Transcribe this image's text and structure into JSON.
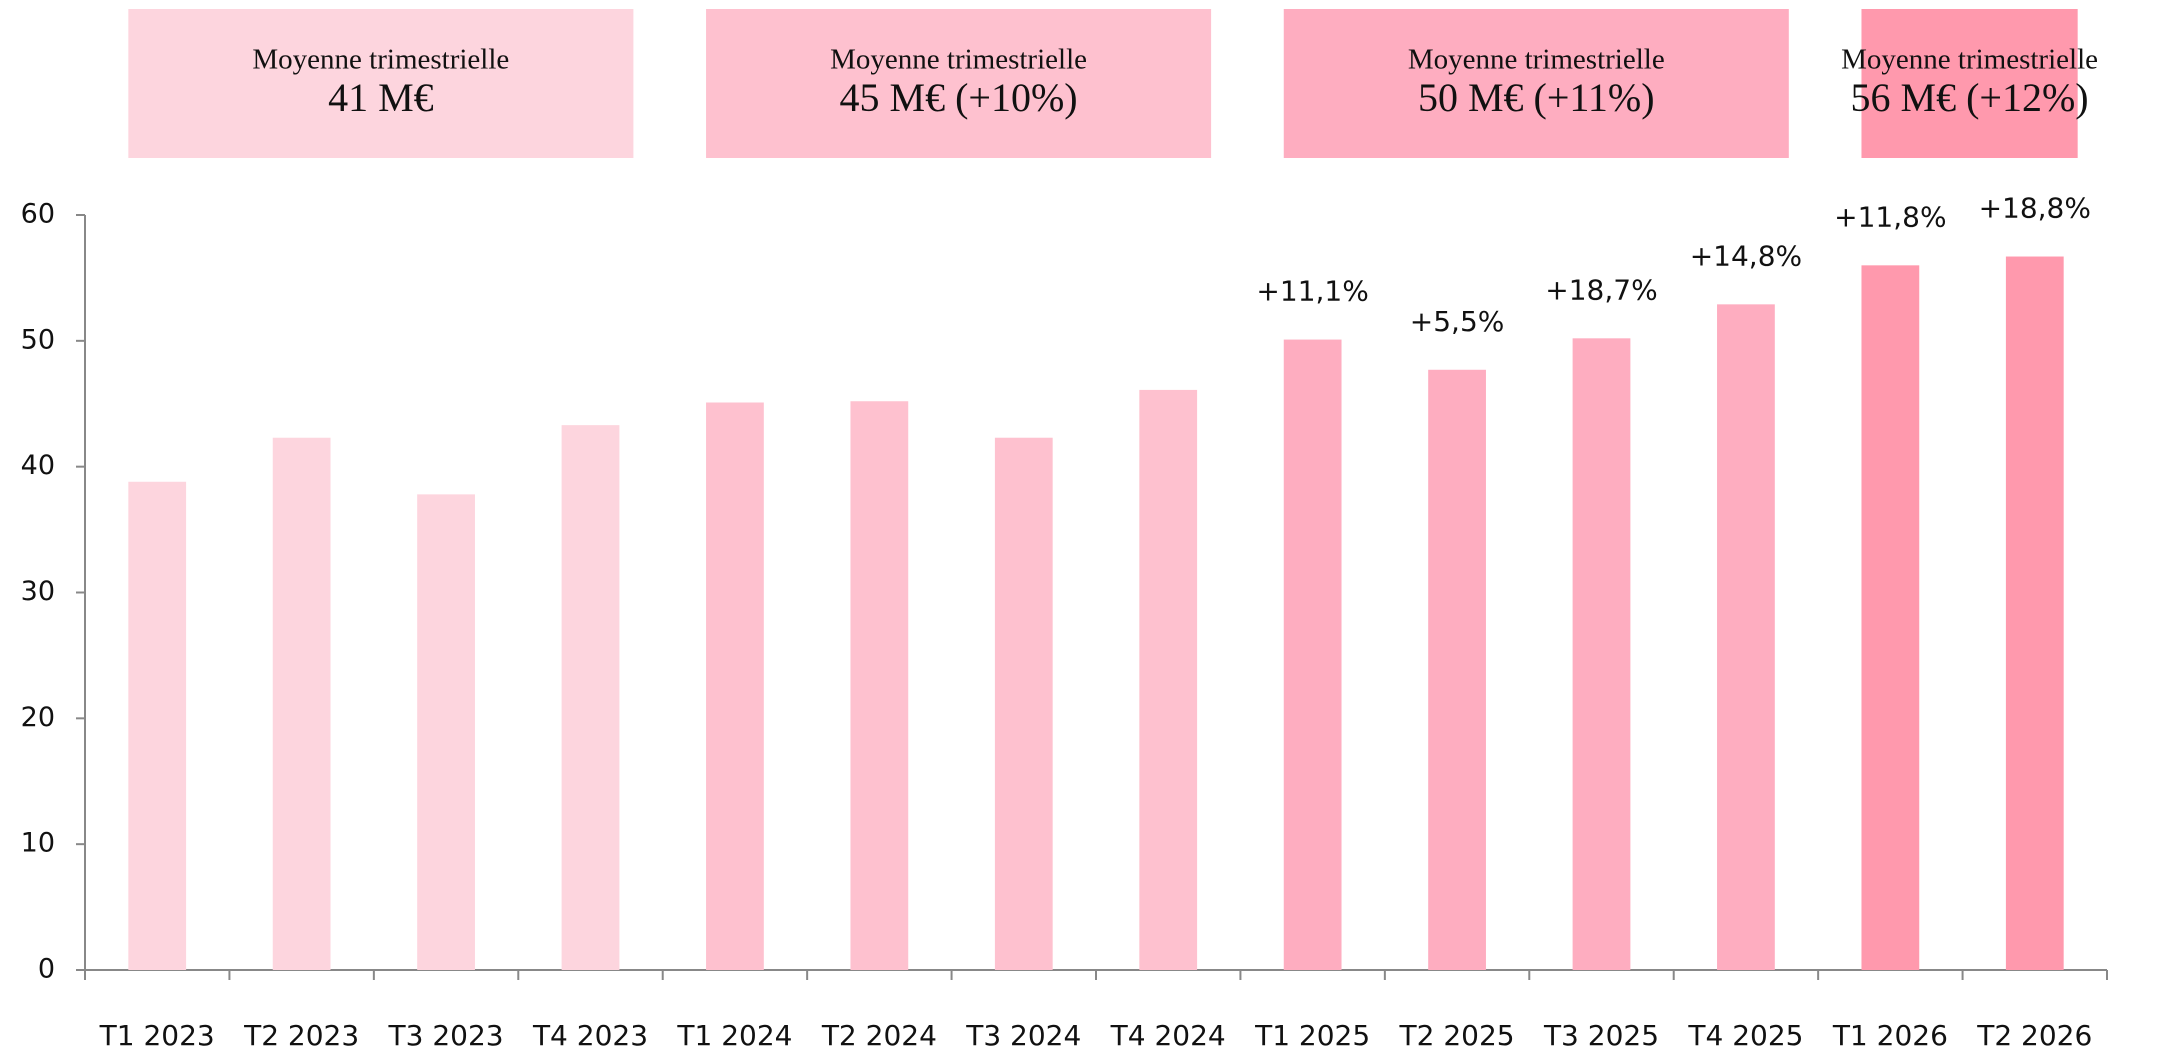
{
  "chart_data": {
    "type": "bar",
    "categories": [
      "T1 2023",
      "T2 2023",
      "T3 2023",
      "T4 2023",
      "T1 2024",
      "T2 2024",
      "T3 2024",
      "T4 2024",
      "T1 2025",
      "T2 2025",
      "T3 2025",
      "T4 2025",
      "T1 2026",
      "T2 2026"
    ],
    "values": [
      38.8,
      42.3,
      37.8,
      43.3,
      45.1,
      45.2,
      42.3,
      46.1,
      50.1,
      47.7,
      50.2,
      52.9,
      56.0,
      56.7
    ],
    "colors": [
      "#fdd5de",
      "#fdd5de",
      "#fdd5de",
      "#fdd5de",
      "#fec1cf",
      "#fec1cf",
      "#fec1cf",
      "#fec1cf",
      "#feadc0",
      "#feadc0",
      "#feadc0",
      "#feadc0",
      "#ff99ad",
      "#ff99ad"
    ],
    "growth_labels": [
      null,
      null,
      null,
      null,
      null,
      null,
      null,
      null,
      "+11,1%",
      "+5,5%",
      "+18,7%",
      "+14,8%",
      "+11,8%",
      "+18,8%"
    ],
    "ylim": [
      0,
      60
    ],
    "yticks": [
      0,
      10,
      20,
      30,
      40,
      50,
      60
    ],
    "periods": [
      {
        "title": "Moyenne trimestrielle",
        "value": "41 M€",
        "color": "#fdd5de"
      },
      {
        "title": "Moyenne trimestrielle",
        "value": "45 M€ (+10%)",
        "color": "#fec1cf"
      },
      {
        "title": "Moyenne trimestrielle",
        "value": "50 M€ (+11%)",
        "color": "#feadc0"
      },
      {
        "title": "Moyenne trimestrielle",
        "value": "56 M€ (+12%)",
        "color": "#ff99ad"
      }
    ]
  }
}
